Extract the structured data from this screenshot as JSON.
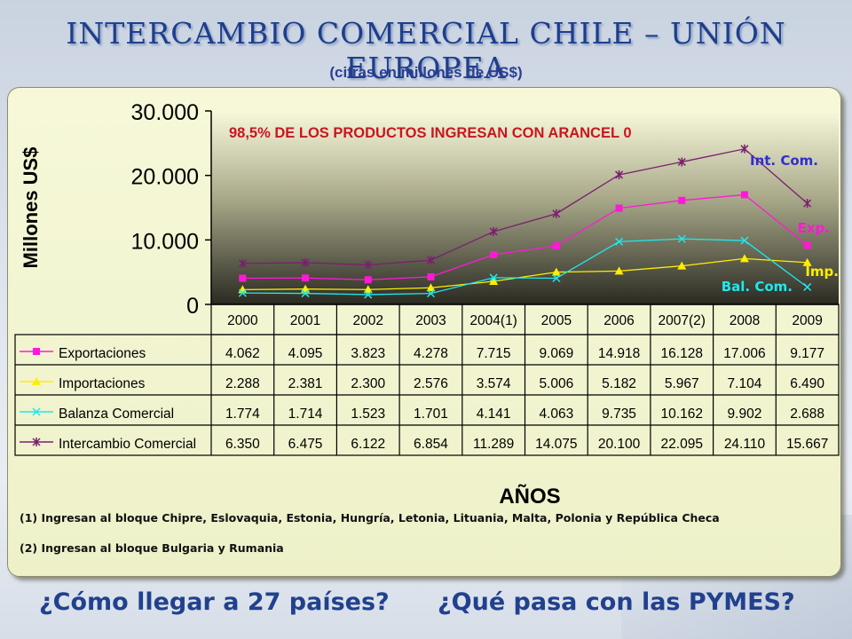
{
  "page": {
    "title": "INTERCAMBIO COMERCIAL CHILE – UNIÓN EUROPEA",
    "subtitle": "(cifras en millones de US$)",
    "footnote_1": "(1) Ingresan al bloque Chipre, Eslovaquia, Estonia, Hungría, Letonia, Lituania, Malta, Polonia y República Checa",
    "footnote_2": "(2) Ingresan al bloque Bulgaria y Rumania",
    "question_1": "¿Cómo llegar a 27 países?",
    "question_2": "¿Qué pasa con las PYMES?"
  },
  "chart_data": {
    "type": "line",
    "annotation": "98,5% DE LOS PRODUCTOS INGRESAN CON ARANCEL 0",
    "ylabel": "Millones US$",
    "xlabel": "AÑOS",
    "ylim": [
      0,
      30000
    ],
    "yticks": [
      "0",
      "10.000",
      "20.000",
      "30.000"
    ],
    "categories": [
      "2000",
      "2001",
      "2002",
      "2003",
      "2004(1)",
      "2005",
      "2006",
      "2007(2)",
      "2008",
      "2009"
    ],
    "series": [
      {
        "name": "Exportaciones",
        "short_label": "Exp.",
        "color": "#ff19d6",
        "marker": "square",
        "values": [
          4062,
          4095,
          3823,
          4278,
          7715,
          9069,
          14918,
          16128,
          17006,
          9177
        ],
        "display": [
          "4.062",
          "4.095",
          "3.823",
          "4.278",
          "7.715",
          "9.069",
          "14.918",
          "16.128",
          "17.006",
          "9.177"
        ]
      },
      {
        "name": "Importaciones",
        "short_label": "Imp.",
        "color": "#ffee00",
        "marker": "triangle",
        "values": [
          2288,
          2381,
          2300,
          2576,
          3574,
          5006,
          5182,
          5967,
          7104,
          6490
        ],
        "display": [
          "2.288",
          "2.381",
          "2.300",
          "2.576",
          "3.574",
          "5.006",
          "5.182",
          "5.967",
          "7.104",
          "6.490"
        ]
      },
      {
        "name": "Balanza Comercial",
        "short_label": "Bal. Com.",
        "color": "#1ee8ee",
        "marker": "x",
        "values": [
          1774,
          1714,
          1523,
          1701,
          4141,
          4063,
          9735,
          10162,
          9902,
          2688
        ],
        "display": [
          "1.774",
          "1.714",
          "1.523",
          "1.701",
          "4.141",
          "4.063",
          "9.735",
          "10.162",
          "9.902",
          "2.688"
        ]
      },
      {
        "name": "Intercambio Comercial",
        "short_label": "Int. Com.",
        "color": "#7a1f6e",
        "marker": "star",
        "values": [
          6350,
          6475,
          6122,
          6854,
          11289,
          14075,
          20100,
          22095,
          24110,
          15667
        ],
        "display": [
          "6.350",
          "6.475",
          "6.122",
          "6.854",
          "11.289",
          "14.075",
          "20.100",
          "22.095",
          "24.110",
          "15.667"
        ]
      }
    ]
  }
}
